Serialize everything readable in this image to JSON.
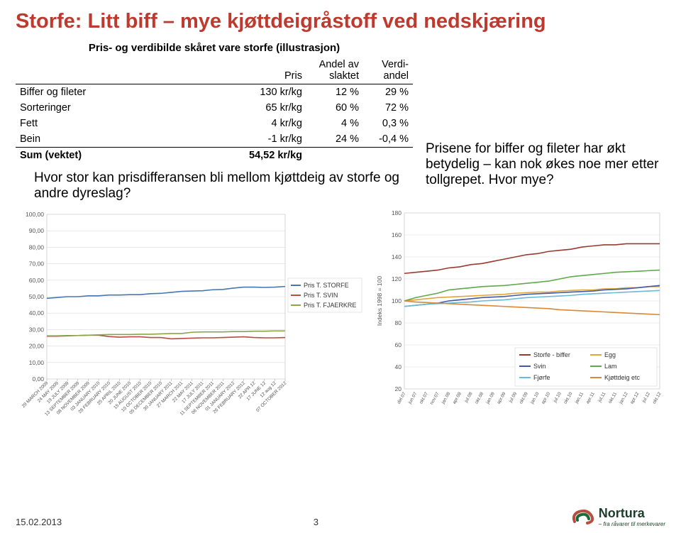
{
  "title": "Storfe: Litt biff – mye kjøttdeigråstoff ved nedskjæring",
  "table": {
    "caption": "Pris- og verdibilde skåret vare storfe (illustrasjon)",
    "headers": [
      "",
      "Pris",
      "Andel av slaktet",
      "Verdi-andel"
    ],
    "rows": [
      [
        "Biffer og fileter",
        "130 kr/kg",
        "12 %",
        "29 %"
      ],
      [
        "Sorteringer",
        "65 kr/kg",
        "60 %",
        "72 %"
      ],
      [
        "Fett",
        "4 kr/kg",
        "4 %",
        "0,3 %"
      ],
      [
        "Bein",
        "-1 kr/kg",
        "24 %",
        "-0,4 %"
      ]
    ],
    "sumrow": [
      "Sum (vektet)",
      "54,52 kr/kg",
      "",
      ""
    ]
  },
  "question": "Hvor stor kan prisdifferansen bli mellom kjøttdeig av storfe og andre dyreslag?",
  "sidecomment": "Prisene for biffer og fileter har økt betydelig – kan nok økes noe mer etter tollgrepet. Hvor mye?",
  "chart_left": {
    "type": "line",
    "ylim": [
      0,
      100
    ],
    "ytick_step": 10,
    "yticks": [
      "0,00",
      "10,00",
      "20,00",
      "30,00",
      "40,00",
      "50,00",
      "60,00",
      "70,00",
      "80,00",
      "90,00",
      "100,00"
    ],
    "legend": [
      {
        "label": "Pris T. STORFE",
        "color": "#4676b4"
      },
      {
        "label": "Pris T. SVIN",
        "color": "#b84c41"
      },
      {
        "label": "Pris T. FJAERKRE",
        "color": "#88a54a"
      }
    ],
    "x_labels": [
      "29 MARCH 2009",
      "24 MAY 2009",
      "19 JULY 2009",
      "13 SEPTEMBER 2009",
      "08 NOVEMBER 2009",
      "03 JANUARY 2010",
      "28 FEBRUARY 2010",
      "25 APRIL 2010",
      "20 JUNE 2010",
      "15 AUGUST 2010",
      "10 OCTOBER 2010",
      "05 DECEMBER 2010",
      "30 JANUARY 2011",
      "27 MARCH 2011",
      "22 MAY 2011",
      "17 JULY 2011",
      "11 SEPTEMBER 2011",
      "06 NOVEMBER 2011",
      "01 JANUARY 2012",
      "26 FEBRUARY 2012",
      "22 APR 12",
      "17 JUNE 12",
      "12 aug 12",
      "07 OCTOBER 2012"
    ],
    "series": {
      "storfe": [
        49,
        49.5,
        50,
        50,
        50.5,
        50.5,
        51,
        51,
        51.2,
        51.2,
        51.8,
        52,
        52.6,
        53.2,
        53.4,
        53.6,
        54.2,
        54.4,
        55.2,
        55.8,
        55.8,
        55.6,
        55.8,
        56.2
      ],
      "svin": [
        26,
        26,
        26.2,
        26.4,
        26.6,
        26.6,
        25.8,
        25.4,
        25.6,
        25.6,
        25.2,
        25.2,
        24.4,
        24.6,
        24.8,
        25,
        25,
        25.2,
        25.4,
        25.6,
        25.2,
        25,
        25,
        25.2
      ],
      "fjaerkre": [
        26.2,
        26.2,
        26.4,
        26.4,
        26.6,
        26.8,
        27,
        27,
        27,
        27.2,
        27.2,
        27.4,
        27.6,
        27.6,
        28.4,
        28.6,
        28.6,
        28.6,
        28.8,
        28.8,
        29,
        29,
        29.2,
        29.2
      ]
    },
    "grid_color": "#d9d9d9",
    "background": "#ffffff"
  },
  "chart_right": {
    "type": "line",
    "ylabel": "Indeks 1998 = 100",
    "ylim": [
      20,
      180
    ],
    "ytick_step": 20,
    "yticks": [
      "20",
      "40",
      "60",
      "80",
      "100",
      "120",
      "140",
      "160",
      "180"
    ],
    "legend": [
      {
        "label": "Storfe - biffer",
        "color": "#9a3a2f"
      },
      {
        "label": "Egg",
        "color": "#dfa63a"
      },
      {
        "label": "Svin",
        "color": "#3e5aa8"
      },
      {
        "label": "Lam",
        "color": "#5fa84b"
      },
      {
        "label": "Fjørfe",
        "color": "#6abbd8"
      },
      {
        "label": "Kjøttdeig etc",
        "color": "#d98838"
      }
    ],
    "x_labels": [
      "del.07",
      "jun.07",
      "okt.07",
      "nov.07",
      "jan.08",
      "apr.08",
      "jul.08",
      "okt.08",
      "jan.09",
      "apr.09",
      "jul.09",
      "okt.09",
      "jan.10",
      "apr.10",
      "jul.10",
      "okt.10",
      "jan.11",
      "apr.11",
      "jul.11",
      "okt.11",
      "jan.12",
      "apr.12",
      "jul.12",
      "okt.12"
    ],
    "series": {
      "biffer": [
        125,
        126,
        127,
        128,
        130,
        131,
        133,
        134,
        136,
        138,
        140,
        142,
        143,
        145,
        146,
        147,
        149,
        150,
        151,
        151,
        152,
        152,
        152,
        152
      ],
      "egg": [
        100,
        101,
        102,
        103,
        103.5,
        104,
        104.5,
        105,
        105.5,
        106,
        107,
        107.5,
        108,
        108,
        109,
        109.5,
        110,
        110,
        111,
        111,
        112,
        112,
        113,
        113
      ],
      "svin": [
        95,
        96,
        97,
        98,
        100,
        101,
        102,
        103,
        103.5,
        104,
        105,
        106,
        106.5,
        107,
        107.5,
        108,
        108.5,
        109,
        110,
        110.5,
        111,
        112,
        113,
        114
      ],
      "lam": [
        100,
        103,
        105,
        107,
        110,
        111,
        112,
        113,
        113.5,
        114,
        115,
        116,
        117,
        118,
        120,
        122,
        123,
        124,
        125,
        126,
        126.5,
        127,
        127.5,
        128
      ],
      "fjorfe": [
        95,
        96,
        97,
        97.5,
        98,
        98.5,
        99,
        100,
        100.5,
        101,
        102,
        103,
        103.5,
        104,
        104.5,
        105,
        106,
        106.5,
        107,
        107.5,
        108,
        108.5,
        109,
        109.5
      ],
      "kjottdeig": [
        100,
        99,
        98.5,
        98,
        97.5,
        97,
        96.5,
        96,
        95.5,
        95,
        94.5,
        94,
        93.5,
        93,
        92,
        91.5,
        91,
        90.5,
        90,
        89.5,
        89,
        88.5,
        88,
        87.5
      ]
    },
    "grid_color": "#d9d9d9",
    "background": "#ffffff"
  },
  "footer": {
    "date": "15.02.2013",
    "page": "3"
  },
  "logo": {
    "brand": "Nortura",
    "tag": "– fra råvarer til merkevarer"
  }
}
